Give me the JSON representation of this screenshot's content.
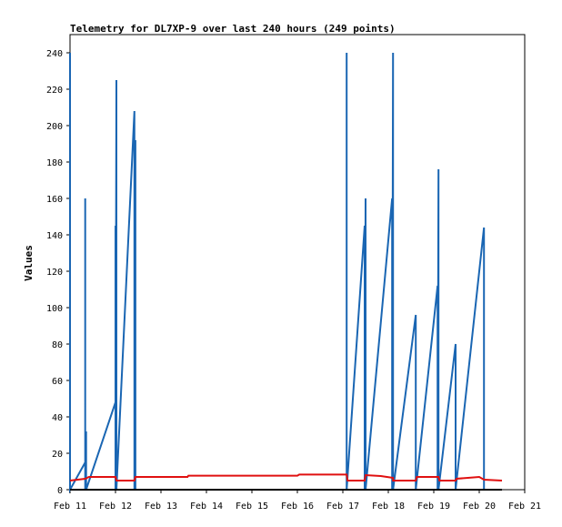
{
  "chart_data": {
    "type": "line",
    "title": "Telemetry for DL7XP-9 over last 240 hours (249 points)",
    "xlabel": "",
    "ylabel": "Values",
    "xlim": [
      "Feb 11",
      "Feb 21"
    ],
    "ylim": [
      0,
      250
    ],
    "x_tick_labels": [
      "Feb 11",
      "Feb 12",
      "Feb 13",
      "Feb 14",
      "Feb 15",
      "Feb 16",
      "Feb 17",
      "Feb 18",
      "Feb 19",
      "Feb 20",
      "Feb 21"
    ],
    "y_ticks": [
      0,
      20,
      40,
      60,
      80,
      100,
      120,
      140,
      160,
      180,
      200,
      220,
      240
    ],
    "grid": false,
    "series": [
      {
        "color": "#1a66b3",
        "points": [
          [
            "Feb 11 00:00",
            0
          ],
          [
            "Feb 11 00:00",
            240
          ],
          [
            "Feb 11 00:00",
            0
          ],
          [
            "Feb 11 08:00",
            15
          ],
          [
            "Feb 11 08:00",
            160
          ],
          [
            "Feb 11 08:00",
            0
          ],
          [
            "Feb 11 08:30",
            32
          ],
          [
            "Feb 11 08:30",
            0
          ],
          [
            "Feb 12 00:00",
            48
          ],
          [
            "Feb 12 00:00",
            145
          ],
          [
            "Feb 12 00:00",
            0
          ],
          [
            "Feb 12 00:30",
            225
          ],
          [
            "Feb 12 00:30",
            0
          ],
          [
            "Feb 12 10:00",
            208
          ],
          [
            "Feb 12 10:00",
            0
          ],
          [
            "Feb 12 10:30",
            192
          ],
          [
            "Feb 12 10:30",
            0
          ],
          [
            "Feb 17 02:00",
            0
          ],
          [
            "Feb 17 02:00",
            240
          ],
          [
            "Feb 17 02:00",
            0
          ],
          [
            "Feb 17 11:30",
            145
          ],
          [
            "Feb 17 11:30",
            0
          ],
          [
            "Feb 17 12:00",
            160
          ],
          [
            "Feb 17 12:00",
            0
          ],
          [
            "Feb 18 02:00",
            160
          ],
          [
            "Feb 18 02:00",
            0
          ],
          [
            "Feb 18 02:30",
            240
          ],
          [
            "Feb 18 02:30",
            0
          ],
          [
            "Feb 18 14:30",
            96
          ],
          [
            "Feb 18 14:30",
            0
          ],
          [
            "Feb 19 02:00",
            112
          ],
          [
            "Feb 19 02:00",
            0
          ],
          [
            "Feb 19 02:30",
            176
          ],
          [
            "Feb 19 02:30",
            0
          ],
          [
            "Feb 19 11:30",
            80
          ],
          [
            "Feb 19 11:30",
            0
          ],
          [
            "Feb 20 02:30",
            144
          ],
          [
            "Feb 20 02:30",
            0
          ]
        ]
      },
      {
        "color": "#e01010",
        "points": [
          [
            "Feb 11 00:00",
            5
          ],
          [
            "Feb 11 08:00",
            6
          ],
          [
            "Feb 11 10:00",
            7
          ],
          [
            "Feb 12 00:00",
            7
          ],
          [
            "Feb 12 00:30",
            5
          ],
          [
            "Feb 12 10:00",
            5
          ],
          [
            "Feb 12 10:30",
            7
          ],
          [
            "Feb 13 14:00",
            7
          ],
          [
            "Feb 13 14:30",
            7.7
          ],
          [
            "Feb 16 00:00",
            7.7
          ],
          [
            "Feb 16 01:00",
            8.3
          ],
          [
            "Feb 17 02:00",
            8.3
          ],
          [
            "Feb 17 02:30",
            5
          ],
          [
            "Feb 17 11:30",
            5
          ],
          [
            "Feb 17 12:00",
            8
          ],
          [
            "Feb 17 20:00",
            7.5
          ],
          [
            "Feb 18 02:30",
            6.5
          ],
          [
            "Feb 18 02:30",
            5
          ],
          [
            "Feb 18 14:30",
            5
          ],
          [
            "Feb 18 15:00",
            7
          ],
          [
            "Feb 19 02:30",
            7
          ],
          [
            "Feb 19 03:00",
            5
          ],
          [
            "Feb 19 11:30",
            5
          ],
          [
            "Feb 19 12:00",
            6
          ],
          [
            "Feb 19 18:00",
            6.5
          ],
          [
            "Feb 20 00:00",
            7
          ],
          [
            "Feb 20 02:30",
            5.5
          ],
          [
            "Feb 20 12:00",
            5
          ]
        ]
      },
      {
        "color": "#000000",
        "points": [
          [
            "Feb 11 00:00",
            0
          ],
          [
            "Feb 20 12:00",
            0
          ]
        ]
      }
    ]
  }
}
